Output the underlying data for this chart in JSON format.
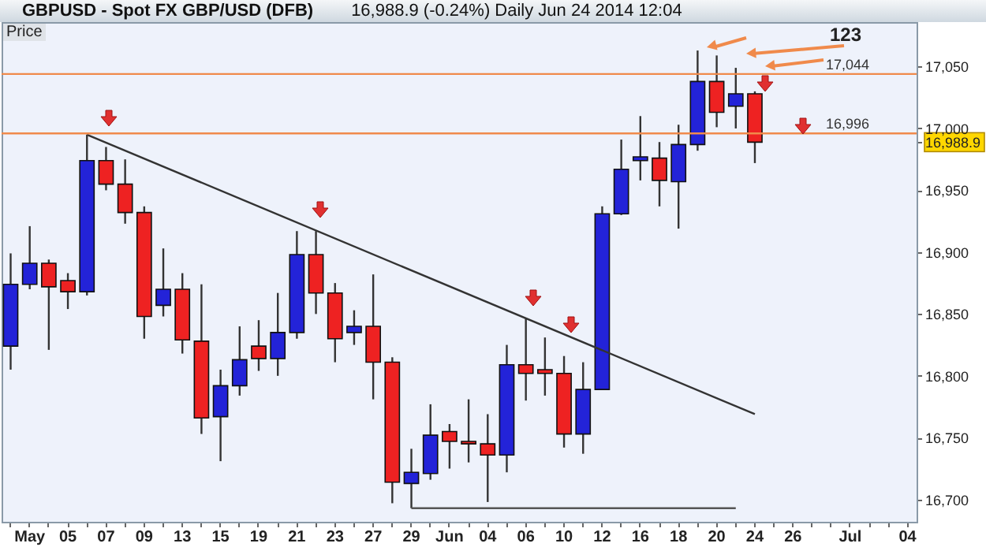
{
  "chart_data": {
    "type": "candlestick",
    "title": "GBPUSD - Spot FX GBP/USD (DFB)",
    "subtitle": "16,988.9 (-0.24%)    Daily   Jun 24 2014 12:04",
    "categories": [
      null,
      "May",
      null,
      "05",
      null,
      "07",
      null,
      "09",
      null,
      "13",
      null,
      "15",
      null,
      "19",
      null,
      "21",
      null,
      "23",
      null,
      "27",
      null,
      "29",
      null,
      "Jun",
      null,
      "04",
      null,
      "06",
      null,
      "10",
      null,
      "12",
      null,
      "16",
      null,
      "18",
      null,
      "20",
      null,
      "24",
      null,
      "26",
      null,
      null,
      "Jul",
      null,
      null,
      "04"
    ],
    "ohlc": [
      [
        16824,
        16899,
        16805,
        16874
      ],
      [
        16874,
        16921,
        16870,
        16891
      ],
      [
        16891,
        16894,
        16821,
        16872
      ],
      [
        16877,
        16883,
        16854,
        16868
      ],
      [
        16868,
        16995,
        16865,
        16974
      ],
      [
        16974,
        16985,
        16950,
        16955
      ],
      [
        16955,
        16975,
        16923,
        16932
      ],
      [
        16932,
        16937,
        16830,
        16848
      ],
      [
        16857,
        16903,
        16848,
        16870
      ],
      [
        16870,
        16883,
        16818,
        16829
      ],
      [
        16828,
        16874,
        16753,
        16766
      ],
      [
        16767,
        16805,
        16731,
        16792
      ],
      [
        16792,
        16840,
        16784,
        16813
      ],
      [
        16824,
        16845,
        16804,
        16814
      ],
      [
        16814,
        16867,
        16800,
        16835
      ],
      [
        16835,
        16917,
        16830,
        16898
      ],
      [
        16898,
        16917,
        16850,
        16867
      ],
      [
        16867,
        16875,
        16811,
        16830
      ],
      [
        16835,
        16853,
        16825,
        16840
      ],
      [
        16840,
        16882,
        16781,
        16811
      ],
      [
        16811,
        16815,
        16697,
        16714
      ],
      [
        16713,
        16741,
        16693,
        16722
      ],
      [
        16721,
        16777,
        16716,
        16752
      ],
      [
        16755,
        16761,
        16725,
        16747
      ],
      [
        16747,
        16781,
        16730,
        16745
      ],
      [
        16745,
        16769,
        16698,
        16736
      ],
      [
        16736,
        16825,
        16722,
        16809
      ],
      [
        16809,
        16847,
        16780,
        16802
      ],
      [
        16805,
        16831,
        16784,
        16802
      ],
      [
        16802,
        16816,
        16742,
        16753
      ],
      [
        16753,
        16811,
        16737,
        16789
      ],
      [
        16789,
        16937,
        16789,
        16931
      ],
      [
        16931,
        16991,
        16930,
        16967
      ],
      [
        16974,
        17010,
        16958,
        16977
      ],
      [
        16976,
        16989,
        16937,
        16958
      ],
      [
        16957,
        17003,
        16919,
        16987
      ],
      [
        16987,
        17063,
        16982,
        17038
      ],
      [
        17038,
        17059,
        17001,
        17013
      ],
      [
        17018,
        17049,
        17000,
        17028
      ],
      [
        17028,
        17030,
        16972,
        16988.9
      ],
      null,
      null,
      null,
      null,
      null,
      null,
      null,
      null
    ],
    "colors": [
      "#2323d8",
      "#2323d8",
      "#ee2222",
      "#ee2222",
      "#2323d8",
      "#ee2222",
      "#ee2222",
      "#ee2222",
      "#2323d8",
      "#ee2222",
      "#ee2222",
      "#2323d8",
      "#2323d8",
      "#ee2222",
      "#2323d8",
      "#2323d8",
      "#ee2222",
      "#ee2222",
      "#2323d8",
      "#ee2222",
      "#ee2222",
      "#2323d8",
      "#2323d8",
      "#ee2222",
      "#ee2222",
      "#ee2222",
      "#2323d8",
      "#ee2222",
      "#ee2222",
      "#ee2222",
      "#2323d8",
      "#2323d8",
      "#2323d8",
      "#2323d8",
      "#ee2222",
      "#2323d8",
      "#2323d8",
      "#ee2222",
      "#2323d8",
      "#ee2222",
      null,
      null,
      null,
      null,
      null,
      null,
      null,
      null
    ],
    "series": [
      {
        "type": "line",
        "color": "#333333",
        "values": [
          null,
          null,
          null,
          null,
          16995,
          null,
          null,
          null,
          null,
          null,
          null,
          null,
          null,
          null,
          null,
          null,
          null,
          null,
          null,
          null,
          null,
          null,
          null,
          null,
          null,
          null,
          null,
          null,
          null,
          null,
          null,
          null,
          null,
          null,
          null,
          null,
          null,
          null,
          null,
          16769,
          null,
          null,
          null,
          null,
          null,
          null,
          null,
          null
        ]
      },
      {
        "type": "line",
        "color": "#555555",
        "values": [
          null,
          null,
          null,
          null,
          null,
          null,
          null,
          null,
          null,
          null,
          null,
          null,
          null,
          null,
          null,
          null,
          null,
          null,
          null,
          null,
          null,
          16693,
          null,
          null,
          null,
          null,
          null,
          null,
          null,
          null,
          null,
          null,
          null,
          null,
          null,
          null,
          null,
          null,
          16693,
          null,
          null,
          null,
          null,
          null,
          null,
          null,
          null,
          null
        ]
      }
    ],
    "ref_lines": [
      {
        "axis": "y",
        "value": 17044,
        "label": "17,044",
        "color": "#f08a4b"
      },
      {
        "axis": "y",
        "value": 16996,
        "label": "16,996",
        "color": "#f08a4b"
      }
    ],
    "annotations": [
      "Price",
      "123"
    ],
    "ylim": [
      16682,
      17086
    ],
    "yticks": [
      {
        "value": 16700,
        "label": "16,700"
      },
      {
        "value": 16750,
        "label": "16,750"
      },
      {
        "value": 16800,
        "label": "16,800"
      },
      {
        "value": 16850,
        "label": "16,850"
      },
      {
        "value": 16900,
        "label": "16,900"
      },
      {
        "value": 16950,
        "label": "16,950"
      },
      {
        "value": 16988.9,
        "label": "16,988.9"
      },
      {
        "value": 17000,
        "label": "17,000"
      },
      {
        "value": 17050,
        "label": "17,050"
      }
    ]
  }
}
